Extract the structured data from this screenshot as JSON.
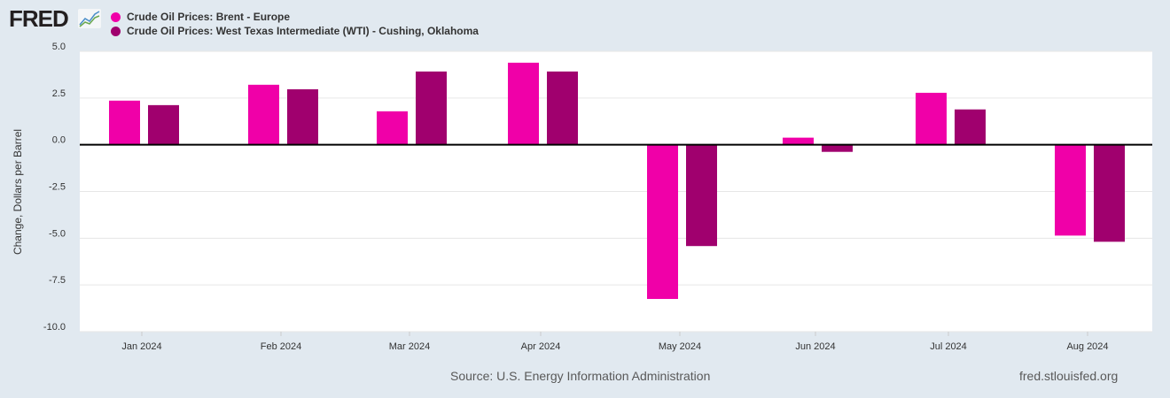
{
  "logo": "FRED",
  "footer": {
    "source": "Source: U.S. Energy Information Administration",
    "site": "fred.stlouisfed.org"
  },
  "chart_data": {
    "type": "bar",
    "ylabel": "Change, Dollars per Barrel",
    "xlabel": "",
    "ylim": [
      -10,
      5
    ],
    "yticks": [
      "5.0",
      "2.5",
      "0.0",
      "-2.5",
      "-5.0",
      "-7.5",
      "-10.0"
    ],
    "categories": [
      "Jan 2024",
      "Feb 2024",
      "Mar 2024",
      "Apr 2024",
      "May 2024",
      "Jun 2024",
      "Jul 2024",
      "Aug 2024"
    ],
    "series": [
      {
        "name": "Crude Oil Prices: Brent - Europe",
        "color": "#f000a8",
        "values": [
          2.36,
          3.21,
          1.79,
          4.39,
          -8.25,
          0.38,
          2.78,
          -4.86
        ]
      },
      {
        "name": "Crude Oil Prices: West Texas Intermediate (WTI) - Cushing, Oklahoma",
        "color": "#a0006e",
        "values": [
          2.12,
          2.97,
          3.92,
          3.92,
          -5.42,
          -0.38,
          1.89,
          -5.19
        ]
      }
    ],
    "grid": true,
    "legend": "top-left"
  }
}
